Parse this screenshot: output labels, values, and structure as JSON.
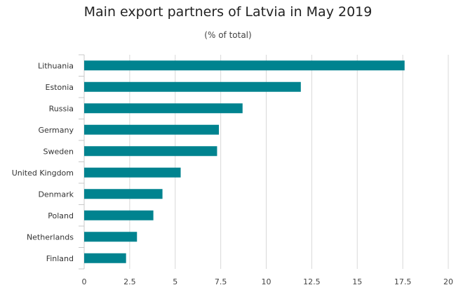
{
  "chart_data": {
    "type": "bar",
    "orientation": "horizontal",
    "title": "Main export partners of Latvia in May 2019",
    "subtitle": "(% of total)",
    "xlabel": "",
    "ylabel": "",
    "categories": [
      "Lithuania",
      "Estonia",
      "Russia",
      "Germany",
      "Sweden",
      "United Kingdom",
      "Denmark",
      "Poland",
      "Netherlands",
      "Finland"
    ],
    "values": [
      17.6,
      11.9,
      8.7,
      7.4,
      7.3,
      5.3,
      4.3,
      3.8,
      2.9,
      2.3
    ],
    "xlim": [
      0,
      20
    ],
    "ticks": [
      "0",
      "2.5",
      "5",
      "7.5",
      "10",
      "12.5",
      "15",
      "17.5",
      "20"
    ],
    "grid": true,
    "bar_color": "#00838f"
  }
}
